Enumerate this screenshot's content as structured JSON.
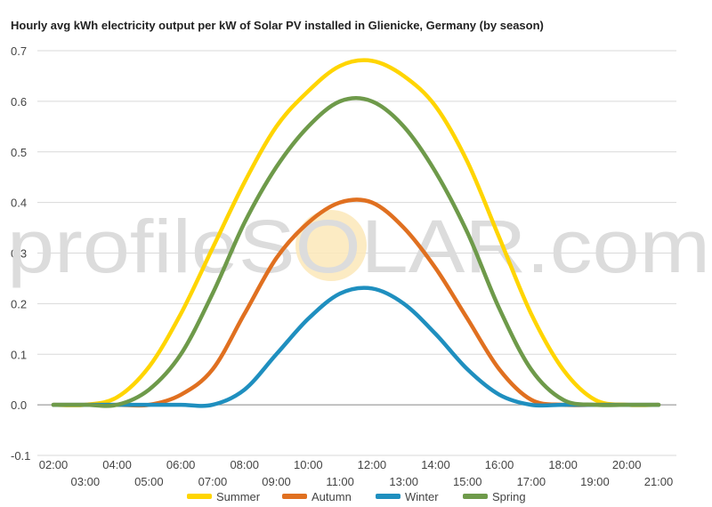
{
  "watermark": {
    "text": "profileSOLAR.com"
  },
  "chart_data": {
    "type": "line",
    "title": "Hourly avg kWh electricity output per kW of Solar PV installed in Glienicke, Germany (by season)",
    "xlabel": "",
    "ylabel": "",
    "categories": [
      "02:00",
      "03:00",
      "04:00",
      "05:00",
      "06:00",
      "07:00",
      "08:00",
      "09:00",
      "10:00",
      "11:00",
      "12:00",
      "13:00",
      "14:00",
      "15:00",
      "16:00",
      "17:00",
      "18:00",
      "19:00",
      "20:00",
      "21:00"
    ],
    "ylim": [
      -0.1,
      0.7
    ],
    "yticks": [
      "-0.1",
      "0.0",
      "0.1",
      "0.2",
      "0.3",
      "0.4",
      "0.5",
      "0.6",
      "0.7"
    ],
    "grid": true,
    "legend_position": "bottom",
    "series": [
      {
        "name": "Summer",
        "color": "#FFD500",
        "values": [
          0,
          0,
          0.015,
          0.075,
          0.18,
          0.31,
          0.44,
          0.55,
          0.62,
          0.67,
          0.68,
          0.65,
          0.59,
          0.48,
          0.33,
          0.18,
          0.07,
          0.01,
          0,
          0
        ]
      },
      {
        "name": "Autumn",
        "color": "#E07020",
        "values": [
          0,
          0,
          0,
          0,
          0.02,
          0.07,
          0.18,
          0.29,
          0.36,
          0.4,
          0.4,
          0.35,
          0.27,
          0.17,
          0.07,
          0.01,
          0,
          0,
          0,
          0
        ]
      },
      {
        "name": "Winter",
        "color": "#1F8FBF",
        "values": [
          0,
          0,
          0,
          0,
          0,
          0,
          0.03,
          0.1,
          0.17,
          0.22,
          0.23,
          0.2,
          0.14,
          0.07,
          0.02,
          0,
          0,
          0,
          0,
          0
        ]
      },
      {
        "name": "Spring",
        "color": "#6E9A4A",
        "values": [
          0,
          0,
          0,
          0.03,
          0.1,
          0.22,
          0.36,
          0.47,
          0.55,
          0.6,
          0.6,
          0.55,
          0.46,
          0.34,
          0.19,
          0.07,
          0.01,
          0,
          0,
          0
        ]
      }
    ]
  }
}
